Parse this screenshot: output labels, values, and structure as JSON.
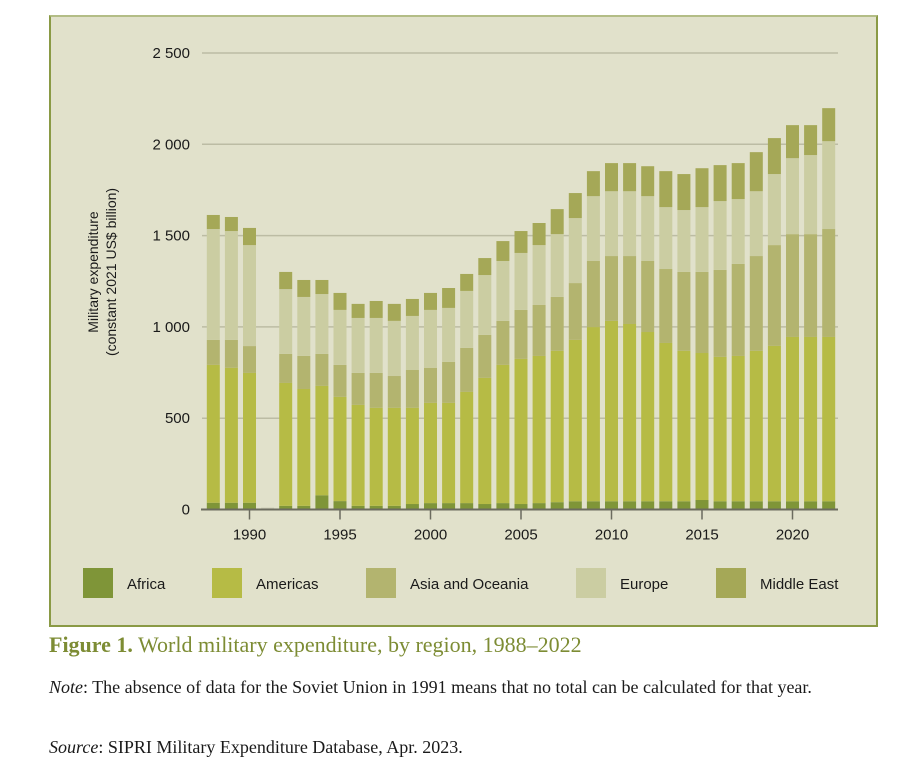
{
  "figure": {
    "label": "Figure 1.",
    "title": "World military expenditure, by region, 1988–2022",
    "note_label": "Note",
    "note_text": ": The absence of data for the Soviet Union in 1991 means that no total can be calculated for that year.",
    "source_label": "Source",
    "source_text": ": SIPRI Military Expenditure Database, Apr. 2023."
  },
  "chart_data": {
    "type": "bar",
    "stacked": true,
    "title": "World military expenditure, by region, 1988–2022",
    "xlabel": "",
    "ylabel": "Military expenditure",
    "ylabel_sub": "(constant 2021 US$ billion)",
    "ylim": [
      0,
      2500
    ],
    "yticks": [
      0,
      500,
      1000,
      1500,
      2000,
      2500
    ],
    "ytick_labels": [
      "0",
      "500",
      "1 000",
      "1 500",
      "2 000",
      "2 500"
    ],
    "xticks": [
      1990,
      1995,
      2000,
      2005,
      2010,
      2015,
      2020
    ],
    "grid": true,
    "legend_position": "bottom",
    "categories": [
      1988,
      1989,
      1990,
      1991,
      1992,
      1993,
      1994,
      1995,
      1996,
      1997,
      1998,
      1999,
      2000,
      2001,
      2002,
      2003,
      2004,
      2005,
      2006,
      2007,
      2008,
      2009,
      2010,
      2011,
      2012,
      2013,
      2014,
      2015,
      2016,
      2017,
      2018,
      2019,
      2020,
      2021,
      2022
    ],
    "series": [
      {
        "name": "Africa",
        "color": "#7f9538",
        "values": [
          37,
          37,
          37,
          null,
          20,
          20,
          78,
          46,
          20,
          20,
          20,
          30,
          35,
          35,
          35,
          30,
          35,
          30,
          35,
          40,
          45,
          45,
          45,
          45,
          45,
          45,
          45,
          52,
          45,
          45,
          45,
          45,
          45,
          45,
          45
        ]
      },
      {
        "name": "Americas",
        "color": "#b6bb45",
        "values": [
          755,
          739,
          711,
          null,
          673,
          640,
          599,
          571,
          553,
          537,
          537,
          527,
          549,
          549,
          609,
          691,
          757,
          795,
          806,
          829,
          884,
          954,
          988,
          971,
          927,
          867,
          824,
          805,
          791,
          796,
          824,
          851,
          900,
          900,
          900
        ]
      },
      {
        "name": "Asia and Oceania",
        "color": "#b3b46f",
        "values": [
          137,
          153,
          147,
          null,
          159,
          181,
          175,
          175,
          175,
          191,
          174,
          207,
          192,
          224,
          241,
          235,
          241,
          268,
          279,
          295,
          311,
          362,
          355,
          372,
          389,
          405,
          432,
          444,
          476,
          504,
          519,
          552,
          563,
          563,
          591
        ]
      },
      {
        "name": "Europe",
        "color": "#cbcda2",
        "values": [
          607,
          596,
          553,
          null,
          355,
          323,
          328,
          301,
          301,
          301,
          302,
          296,
          317,
          296,
          312,
          328,
          328,
          312,
          328,
          344,
          356,
          355,
          355,
          355,
          355,
          339,
          339,
          355,
          377,
          355,
          355,
          389,
          416,
          433,
          481
        ]
      },
      {
        "name": "Middle East",
        "color": "#a5a857",
        "values": [
          77,
          77,
          94,
          null,
          94,
          93,
          77,
          93,
          77,
          93,
          93,
          93,
          93,
          109,
          93,
          93,
          109,
          120,
          121,
          137,
          137,
          137,
          154,
          154,
          164,
          197,
          197,
          213,
          197,
          197,
          214,
          197,
          181,
          164,
          181
        ]
      }
    ]
  }
}
